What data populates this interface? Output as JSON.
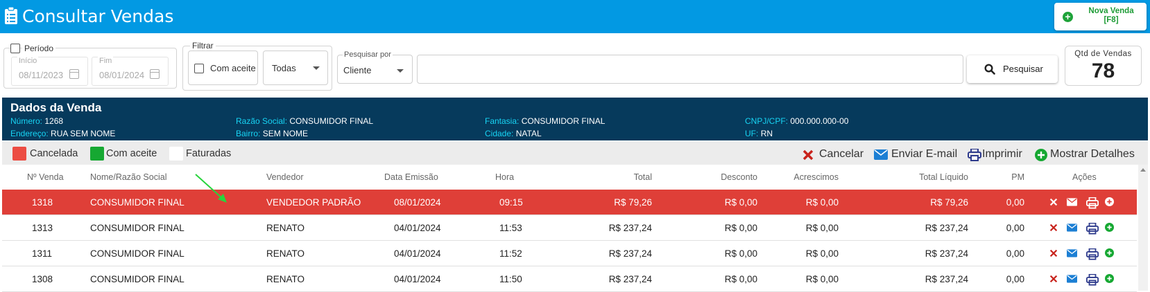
{
  "header": {
    "title": "Consultar Vendas",
    "new_sale_line1": "Nova Venda",
    "new_sale_line2": "[F8]"
  },
  "filters": {
    "periodo_label": "Período",
    "inicio_label": "Início",
    "inicio_value": "08/11/2023",
    "fim_label": "Fim",
    "fim_value": "08/01/2024",
    "filtrar_label": "Filtrar",
    "com_aceite_label": "Com aceite",
    "todas_value": "Todas",
    "pesquisar_por_label": "Pesquisar por",
    "pesquisar_por_value": "Cliente",
    "search_value": "",
    "search_button": "Pesquisar",
    "qtd_label": "Qtd de Vendas",
    "qtd_value": "78"
  },
  "dados_venda": {
    "title": "Dados da Venda",
    "numero_key": "Número:",
    "numero_val": "1268",
    "endereco_key": "Endereço:",
    "endereco_val": "RUA SEM NOME",
    "razao_key": "Razão Social:",
    "razao_val": "CONSUMIDOR FINAL",
    "bairro_key": "Bairro:",
    "bairro_val": "SEM NOME",
    "fantasia_key": "Fantasia:",
    "fantasia_val": "CONSUMIDOR FINAL",
    "cidade_key": "Cidade:",
    "cidade_val": "NATAL",
    "cnpj_key": "CNPJ/CPF:",
    "cnpj_val": "000.000.000-00",
    "uf_key": "UF:",
    "uf_val": "RN"
  },
  "legend": {
    "cancelada": "Cancelada",
    "com_aceite": "Com aceite",
    "faturadas": "Faturadas"
  },
  "actions": {
    "cancelar": "Cancelar",
    "enviar_email": "Enviar E-mail",
    "imprimir": "Imprimir",
    "mostrar_detalhes": "Mostrar Detalhes"
  },
  "table": {
    "columns": [
      "Nº Venda",
      "Nome/Razão Social",
      "Vendedor",
      "Data Emissão",
      "Hora",
      "Total",
      "Desconto",
      "Acrescimos",
      "Total Líquido",
      "PM",
      "Ações"
    ],
    "rows": [
      [
        "1318",
        "CONSUMIDOR FINAL",
        "VENDEDOR PADRÃO",
        "08/01/2024",
        "09:15",
        "R$ 79,26",
        "R$ 0,00",
        "R$ 0,00",
        "R$ 79,26",
        "0,00"
      ],
      [
        "1313",
        "CONSUMIDOR FINAL",
        "RENATO",
        "04/01/2024",
        "11:53",
        "R$ 237,24",
        "R$ 0,00",
        "R$ 0,00",
        "R$ 237,24",
        "0,00"
      ],
      [
        "1311",
        "CONSUMIDOR FINAL",
        "RENATO",
        "04/01/2024",
        "11:52",
        "R$ 237,24",
        "R$ 0,00",
        "R$ 0,00",
        "R$ 237,24",
        "0,00"
      ],
      [
        "1308",
        "CONSUMIDOR FINAL",
        "RENATO",
        "04/01/2024",
        "11:50",
        "R$ 237,24",
        "R$ 0,00",
        "R$ 0,00",
        "R$ 237,24",
        "0,00"
      ]
    ]
  },
  "colors": {
    "header_bg": "#0299e3",
    "dados_bg": "#063a5c",
    "dados_key": "#17d4f4",
    "cancelada": "#df3f38",
    "com_aceite": "#16a832",
    "faturadas": "#ffffff"
  }
}
